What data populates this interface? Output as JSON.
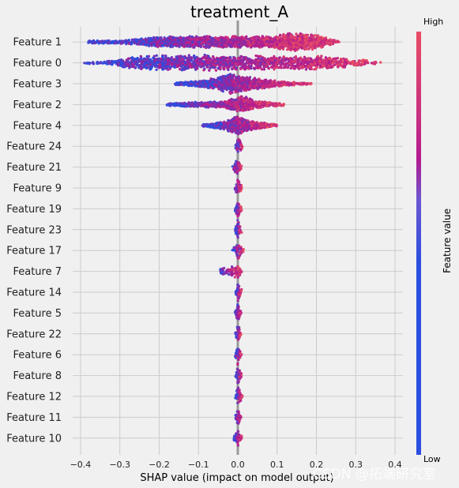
{
  "chart_data": {
    "type": "scatter",
    "subtype": "shap-beeswarm",
    "title": "treatment_A",
    "xlabel": "SHAP value (impact on model output)",
    "ylabel": "",
    "xlim": [
      -0.42,
      0.42
    ],
    "xticks": [
      "−0.4",
      "−0.3",
      "−0.2",
      "−0.1",
      "0.0",
      "0.1",
      "0.2",
      "0.3",
      "0.4"
    ],
    "xtick_values": [
      -0.4,
      -0.3,
      -0.2,
      -0.1,
      0.0,
      0.1,
      0.2,
      0.3,
      0.4
    ],
    "grid": true,
    "features": [
      {
        "name": "Feature 1",
        "min": -0.38,
        "max": 0.26,
        "density": [
          [
            -0.3,
            0.18
          ],
          [
            -0.2,
            0.55
          ],
          [
            -0.1,
            0.6
          ],
          [
            0.0,
            0.6
          ],
          [
            0.08,
            0.6
          ],
          [
            0.14,
            1.0
          ],
          [
            0.2,
            0.75
          ],
          [
            0.26,
            0.05
          ]
        ],
        "color_split": 0.05,
        "count": 2600
      },
      {
        "name": "Feature 0",
        "min": -0.39,
        "max": 0.37,
        "density": [
          [
            -0.35,
            0.1
          ],
          [
            -0.25,
            0.75
          ],
          [
            -0.15,
            0.85
          ],
          [
            -0.05,
            0.8
          ],
          [
            0.05,
            0.75
          ],
          [
            0.12,
            0.7
          ],
          [
            0.22,
            0.75
          ],
          [
            0.32,
            0.3
          ],
          [
            0.37,
            0.05
          ]
        ],
        "color_split": 0.08,
        "count": 2800
      },
      {
        "name": "Feature 3",
        "min": -0.16,
        "max": 0.19,
        "density": [
          [
            -0.15,
            0.15
          ],
          [
            -0.08,
            0.45
          ],
          [
            -0.02,
            1.0
          ],
          [
            0.03,
            0.7
          ],
          [
            0.1,
            0.3
          ],
          [
            0.19,
            0.05
          ]
        ],
        "color_split": 0.0,
        "count": 1200
      },
      {
        "name": "Feature 2",
        "min": -0.18,
        "max": 0.12,
        "density": [
          [
            -0.17,
            0.15
          ],
          [
            -0.1,
            0.3
          ],
          [
            -0.04,
            0.3
          ],
          [
            0.01,
            0.9
          ],
          [
            0.05,
            0.4
          ],
          [
            0.12,
            0.1
          ]
        ],
        "color_split": 0.0,
        "count": 1000
      },
      {
        "name": "Feature 4",
        "min": -0.09,
        "max": 0.1,
        "density": [
          [
            -0.08,
            0.15
          ],
          [
            -0.03,
            0.5
          ],
          [
            0.0,
            1.0
          ],
          [
            0.03,
            0.5
          ],
          [
            0.09,
            0.15
          ]
        ],
        "color_split": 0.0,
        "count": 900
      },
      {
        "name": "Feature 24",
        "min": -0.006,
        "max": 0.012,
        "density": [
          [
            -0.005,
            0.3
          ],
          [
            0.0,
            1.0
          ],
          [
            0.01,
            0.3
          ]
        ],
        "color_split": 0.0,
        "count": 60
      },
      {
        "name": "Feature 21",
        "min": -0.015,
        "max": 0.01,
        "density": [
          [
            -0.012,
            0.3
          ],
          [
            0.0,
            1.0
          ],
          [
            0.008,
            0.3
          ]
        ],
        "color_split": 0.0,
        "count": 60
      },
      {
        "name": "Feature 9",
        "min": -0.008,
        "max": 0.01,
        "density": [
          [
            -0.007,
            0.3
          ],
          [
            0.0,
            1.0
          ],
          [
            0.008,
            0.3
          ]
        ],
        "color_split": 0.0,
        "count": 60
      },
      {
        "name": "Feature 19",
        "min": -0.007,
        "max": 0.01,
        "density": [
          [
            -0.006,
            0.3
          ],
          [
            0.0,
            1.0
          ],
          [
            0.008,
            0.3
          ]
        ],
        "color_split": 0.0,
        "count": 60
      },
      {
        "name": "Feature 23",
        "min": -0.007,
        "max": 0.01,
        "density": [
          [
            -0.006,
            0.3
          ],
          [
            0.0,
            1.0
          ],
          [
            0.008,
            0.3
          ]
        ],
        "color_split": 0.0,
        "count": 60
      },
      {
        "name": "Feature 17",
        "min": -0.015,
        "max": 0.015,
        "density": [
          [
            -0.013,
            0.3
          ],
          [
            0.0,
            1.0
          ],
          [
            0.013,
            0.3
          ]
        ],
        "color_split": 0.0,
        "count": 60
      },
      {
        "name": "Feature 7",
        "min": -0.045,
        "max": 0.01,
        "density": [
          [
            -0.04,
            0.4
          ],
          [
            -0.02,
            0.4
          ],
          [
            0.0,
            0.8
          ],
          [
            0.008,
            0.3
          ]
        ],
        "color_split": 0.0,
        "count": 80
      },
      {
        "name": "Feature 14",
        "min": -0.006,
        "max": 0.01,
        "density": [
          [
            -0.005,
            0.3
          ],
          [
            0.0,
            1.0
          ],
          [
            0.008,
            0.3
          ]
        ],
        "color_split": 0.0,
        "count": 60
      },
      {
        "name": "Feature 5",
        "min": -0.007,
        "max": 0.01,
        "density": [
          [
            -0.006,
            0.3
          ],
          [
            0.0,
            1.0
          ],
          [
            0.008,
            0.3
          ]
        ],
        "color_split": 0.0,
        "count": 60
      },
      {
        "name": "Feature 22",
        "min": -0.006,
        "max": 0.008,
        "density": [
          [
            -0.005,
            0.3
          ],
          [
            0.0,
            1.0
          ],
          [
            0.007,
            0.3
          ]
        ],
        "color_split": 0.0,
        "count": 60
      },
      {
        "name": "Feature 6",
        "min": -0.007,
        "max": 0.01,
        "density": [
          [
            -0.006,
            0.3
          ],
          [
            0.0,
            1.0
          ],
          [
            0.008,
            0.3
          ]
        ],
        "color_split": 0.0,
        "count": 60
      },
      {
        "name": "Feature 8",
        "min": -0.006,
        "max": 0.01,
        "density": [
          [
            -0.005,
            0.3
          ],
          [
            0.0,
            1.0
          ],
          [
            0.008,
            0.3
          ]
        ],
        "color_split": 0.0,
        "count": 60
      },
      {
        "name": "Feature 12",
        "min": -0.007,
        "max": 0.012,
        "density": [
          [
            -0.006,
            0.3
          ],
          [
            0.0,
            1.0
          ],
          [
            0.01,
            0.3
          ]
        ],
        "color_split": 0.0,
        "count": 60
      },
      {
        "name": "Feature 11",
        "min": -0.006,
        "max": 0.01,
        "density": [
          [
            -0.005,
            0.3
          ],
          [
            0.0,
            1.0
          ],
          [
            0.008,
            0.3
          ]
        ],
        "color_split": 0.0,
        "count": 60
      },
      {
        "name": "Feature 10",
        "min": -0.01,
        "max": 0.01,
        "density": [
          [
            -0.008,
            0.3
          ],
          [
            0.0,
            1.0
          ],
          [
            0.008,
            0.3
          ]
        ],
        "color_split": 0.0,
        "count": 60
      }
    ],
    "colorbar": {
      "label": "Feature value",
      "high_label": "High",
      "low_label": "Low",
      "low_color": "#2b4ee0",
      "mid_color": "#b41a8e",
      "high_color": "#e84c65",
      "segments": [
        "#e84c65",
        "#b41a8e",
        "#2b4ee0"
      ]
    }
  },
  "watermark": "CSDN @拓端研究室"
}
